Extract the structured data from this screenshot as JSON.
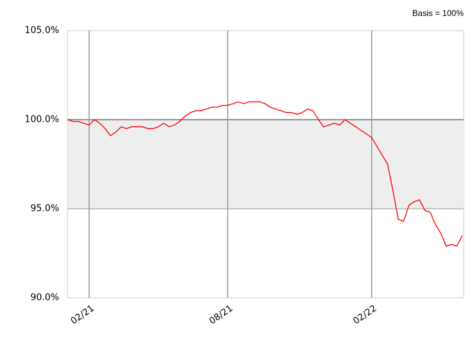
{
  "chart_data": {
    "type": "line",
    "annotation": "Basis = 100%",
    "categories": [
      null,
      null,
      null,
      null,
      "02/21",
      null,
      null,
      null,
      null,
      null,
      null,
      null,
      null,
      null,
      null,
      null,
      null,
      null,
      null,
      null,
      null,
      null,
      null,
      null,
      null,
      null,
      null,
      null,
      null,
      null,
      "08/21",
      null,
      null,
      null,
      null,
      null,
      null,
      null,
      null,
      null,
      null,
      null,
      null,
      null,
      null,
      null,
      null,
      null,
      null,
      null,
      null,
      null,
      null,
      null,
      null,
      null,
      null,
      "02/22",
      null,
      null,
      null,
      null,
      null,
      null,
      null,
      null,
      null,
      null,
      null,
      null,
      null,
      null,
      null,
      null,
      null
    ],
    "series": [
      {
        "color": "#ff0000",
        "values": [
          100.0,
          99.9,
          99.9,
          99.8,
          99.7,
          100.0,
          99.8,
          99.5,
          99.1,
          99.3,
          99.6,
          99.5,
          99.6,
          99.6,
          99.6,
          99.5,
          99.5,
          99.6,
          99.8,
          99.6,
          99.7,
          99.9,
          100.2,
          100.4,
          100.5,
          100.5,
          100.6,
          100.7,
          100.7,
          100.8,
          100.8,
          100.9,
          101.0,
          100.9,
          101.0,
          101.0,
          101.0,
          100.9,
          100.7,
          100.6,
          100.5,
          100.4,
          100.4,
          100.3,
          100.4,
          100.6,
          100.5,
          100.0,
          99.6,
          99.7,
          99.8,
          99.7,
          100.0,
          99.8,
          99.6,
          99.4,
          99.2,
          99.0,
          98.5,
          98.0,
          97.5,
          96.0,
          94.4,
          94.3,
          95.2,
          95.4,
          95.5,
          94.9,
          94.8,
          94.1,
          93.6,
          92.9,
          93.0,
          92.9,
          93.5
        ]
      }
    ],
    "ylim": [
      90,
      105
    ],
    "yticks": [
      {
        "value": 90,
        "label": "90.0%"
      },
      {
        "value": 95,
        "label": "95.0%"
      },
      {
        "value": 100,
        "label": "100.0%"
      },
      {
        "value": 105,
        "label": "105.0%"
      }
    ],
    "band": [
      95,
      100
    ],
    "band_color": "#eeeeee",
    "basis": 100,
    "grid": true
  }
}
